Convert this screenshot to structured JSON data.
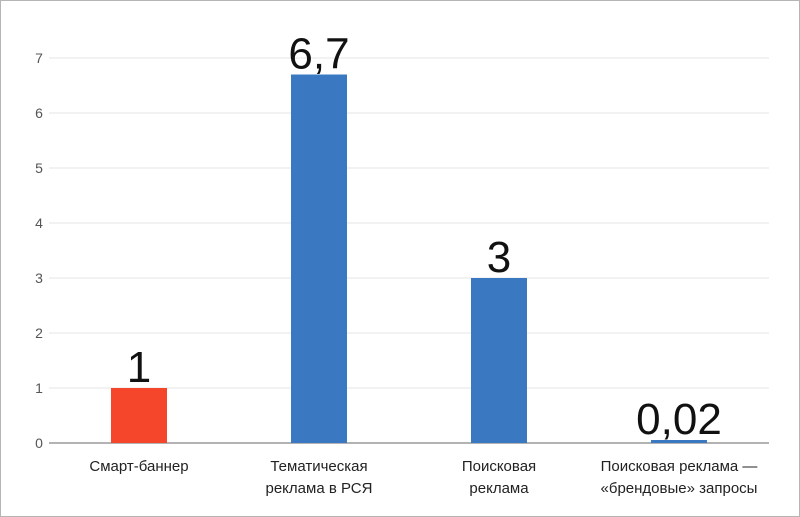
{
  "chart_data": {
    "type": "bar",
    "title": "",
    "xlabel": "",
    "ylabel": "",
    "ylim": [
      0,
      7
    ],
    "yticks": [
      "0",
      "1",
      "2",
      "3",
      "4",
      "5",
      "6",
      "7"
    ],
    "grid": true,
    "categories": [
      [
        "Смарт-баннер"
      ],
      [
        "Тематическая",
        "реклама в РСЯ"
      ],
      [
        "Поисковая",
        "реклама"
      ],
      [
        "Поисковая реклама —",
        "«брендовые» запросы"
      ]
    ],
    "values": [
      1,
      6.7,
      3,
      0.02
    ],
    "data_labels": [
      "1",
      "6,7",
      "3",
      "0,02"
    ],
    "colors": [
      "#f5462b",
      "#3a78c2",
      "#3a78c2",
      "#3a78c2"
    ]
  }
}
